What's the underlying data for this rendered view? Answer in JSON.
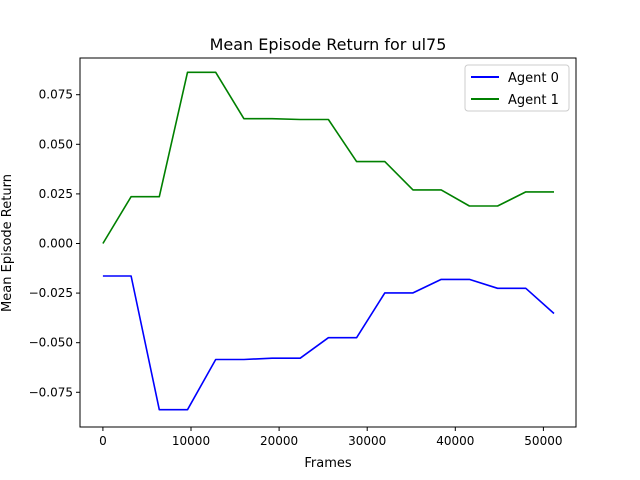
{
  "chart_data": {
    "type": "line",
    "title": "Mean Episode Return for ul75",
    "xlabel": "Frames",
    "ylabel": "Mean Episode Return",
    "xlim": [
      -2600,
      53700
    ],
    "ylim": [
      -0.0925,
      0.0935
    ],
    "xticks": [
      0,
      10000,
      20000,
      30000,
      40000,
      50000
    ],
    "xtick_labels": [
      "0",
      "10000",
      "20000",
      "30000",
      "40000",
      "50000"
    ],
    "yticks": [
      -0.075,
      -0.05,
      -0.025,
      0.0,
      0.025,
      0.05,
      0.075
    ],
    "ytick_labels": [
      "−0.075",
      "−0.050",
      "−0.025",
      "0.000",
      "0.025",
      "0.050",
      "0.075"
    ],
    "grid": false,
    "legend_position": "upper right",
    "x": [
      0,
      3200,
      6400,
      9600,
      12800,
      16000,
      19200,
      22400,
      25600,
      28800,
      32000,
      35200,
      38400,
      41600,
      44800,
      48000,
      51200
    ],
    "series": [
      {
        "name": "Agent 0",
        "color": "#0000ff",
        "values": [
          -0.0164,
          -0.0164,
          -0.0838,
          -0.0838,
          -0.0585,
          -0.0585,
          -0.0578,
          -0.0578,
          -0.0475,
          -0.0475,
          -0.0249,
          -0.0249,
          -0.0181,
          -0.0181,
          -0.0226,
          -0.0226,
          -0.0353
        ]
      },
      {
        "name": "Agent 1",
        "color": "#008000",
        "values": [
          0.0,
          0.0236,
          0.0236,
          0.0863,
          0.0863,
          0.0629,
          0.0629,
          0.0625,
          0.0625,
          0.0413,
          0.0413,
          0.027,
          0.027,
          0.0189,
          0.0189,
          0.026,
          0.026
        ]
      }
    ]
  }
}
